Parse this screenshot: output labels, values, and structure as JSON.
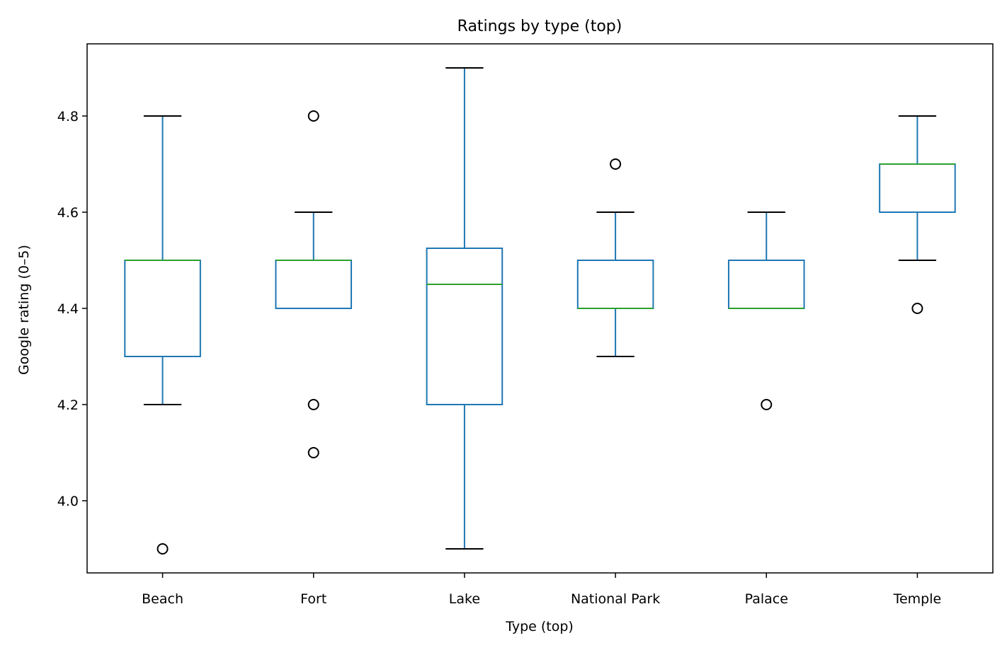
{
  "chart_data": {
    "type": "box",
    "title": "Ratings by type (top)",
    "xlabel": "Type (top)",
    "ylabel": "Google rating (0–5)",
    "ylim": [
      3.85,
      4.95
    ],
    "yticks": [
      4.0,
      4.2,
      4.4,
      4.6,
      4.8
    ],
    "ytick_labels": [
      "4.0",
      "4.2",
      "4.4",
      "4.6",
      "4.8"
    ],
    "grid": false,
    "categories": [
      "Beach",
      "Fort",
      "Lake",
      "National Park",
      "Palace",
      "Temple"
    ],
    "boxes": [
      {
        "name": "Beach",
        "whisker_low": 4.2,
        "q1": 4.3,
        "median": 4.5,
        "q3": 4.5,
        "whisker_high": 4.8,
        "outliers": [
          3.9
        ]
      },
      {
        "name": "Fort",
        "whisker_low": 4.4,
        "q1": 4.4,
        "median": 4.5,
        "q3": 4.5,
        "whisker_high": 4.6,
        "outliers": [
          4.8,
          4.2,
          4.1
        ]
      },
      {
        "name": "Lake",
        "whisker_low": 3.9,
        "q1": 4.2,
        "median": 4.45,
        "q3": 4.525,
        "whisker_high": 4.9,
        "outliers": []
      },
      {
        "name": "National Park",
        "whisker_low": 4.3,
        "q1": 4.4,
        "median": 4.4,
        "q3": 4.5,
        "whisker_high": 4.6,
        "outliers": [
          4.7
        ]
      },
      {
        "name": "Palace",
        "whisker_low": 4.4,
        "q1": 4.4,
        "median": 4.4,
        "q3": 4.5,
        "whisker_high": 4.6,
        "outliers": [
          4.2
        ]
      },
      {
        "name": "Temple",
        "whisker_low": 4.5,
        "q1": 4.6,
        "median": 4.7,
        "q3": 4.7,
        "whisker_high": 4.8,
        "outliers": [
          4.4
        ]
      }
    ],
    "colors": {
      "box": "#1f77b4",
      "median": "#2ca02c",
      "cap": "#000000",
      "outlier": "#000000",
      "axes": "#000000"
    }
  }
}
